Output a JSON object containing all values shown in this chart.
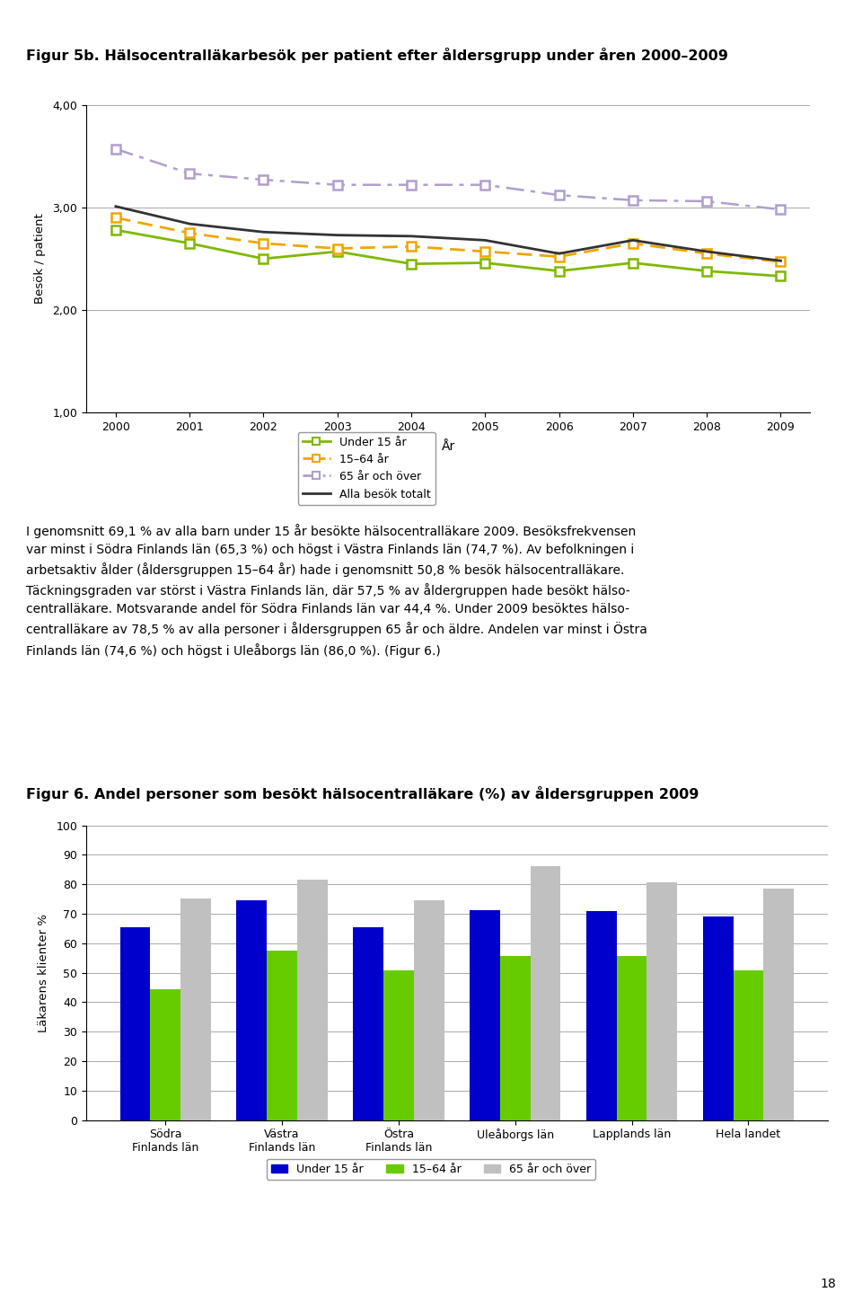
{
  "fig_title_1": "Figur 5b. Hälsocentralläkarbesök per patient efter åldersgrupp under åren 2000–2009",
  "line_xlabel": "År",
  "line_ylabel": "Besök / patient",
  "years": [
    2000,
    2001,
    2002,
    2003,
    2004,
    2005,
    2006,
    2007,
    2008,
    2009
  ],
  "under15": [
    2.78,
    2.65,
    2.5,
    2.57,
    2.45,
    2.46,
    2.38,
    2.46,
    2.38,
    2.33
  ],
  "age15_64": [
    2.9,
    2.75,
    2.65,
    2.6,
    2.62,
    2.57,
    2.52,
    2.65,
    2.55,
    2.47
  ],
  "age65plus": [
    3.57,
    3.33,
    3.27,
    3.22,
    3.22,
    3.22,
    3.12,
    3.07,
    3.06,
    2.98
  ],
  "alla_totalt": [
    3.01,
    2.84,
    2.76,
    2.73,
    2.72,
    2.68,
    2.55,
    2.68,
    2.57,
    2.48
  ],
  "line_ylim": [
    1.0,
    4.0
  ],
  "line_yticks": [
    1.0,
    2.0,
    3.0,
    4.0
  ],
  "color_under15": "#7fb800",
  "color_15_64": "#f0a500",
  "color_65plus": "#b09fcc",
  "color_alla": "#333333",
  "legend_labels_line": [
    "Under 15 år",
    "15–64 år",
    "65 år och över",
    "Alla besök totalt"
  ],
  "fig_title_2": "Figur 6. Andel personer som besökt hälsocentralläkare (%) av åldersgruppen 2009",
  "bar_ylabel": "Läkarens klienter %",
  "bar_categories": [
    "Södra\nFinlands län",
    "Västra\nFinlands län",
    "Östra\nFinlands län",
    "Uleåborgs län",
    "Lapplands län",
    "Hela landet"
  ],
  "bar_under15": [
    65.3,
    74.7,
    65.5,
    71.2,
    70.8,
    69.1
  ],
  "bar_15_64": [
    44.4,
    57.5,
    50.8,
    55.8,
    55.8,
    50.8
  ],
  "bar_65plus": [
    75.2,
    81.5,
    74.6,
    86.0,
    80.8,
    78.5
  ],
  "bar_color_under15": "#0000cc",
  "bar_color_15_64": "#66cc00",
  "bar_color_65plus": "#c0c0c0",
  "bar_ylim": [
    0,
    100
  ],
  "bar_yticks": [
    0,
    10,
    20,
    30,
    40,
    50,
    60,
    70,
    80,
    90,
    100
  ],
  "legend_labels_bar": [
    "Under 15 år",
    "15–64 år",
    "65 år och över"
  ],
  "page_number": "18",
  "background_color": "#ffffff"
}
